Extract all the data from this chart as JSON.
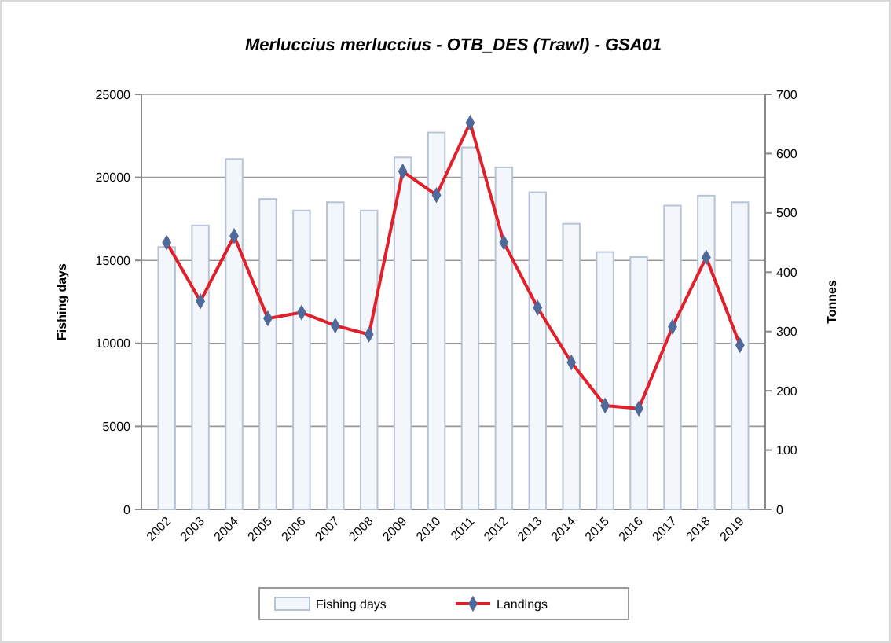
{
  "chart_data": {
    "type": "bar",
    "title": "Merluccius merluccius - OTB_DES (Trawl) - GSA01",
    "ylabel": "Fishing days",
    "y2label": "Tonnes",
    "categories": [
      "2002",
      "2003",
      "2004",
      "2005",
      "2006",
      "2007",
      "2008",
      "2009",
      "2010",
      "2011",
      "2012",
      "2013",
      "2014",
      "2015",
      "2016",
      "2017",
      "2018",
      "2019"
    ],
    "series": [
      {
        "name": "Fishing days",
        "color": "#f3f6fb",
        "values": [
          15800,
          17100,
          21100,
          18700,
          18000,
          18500,
          18000,
          21200,
          22700,
          21800,
          20600,
          19100,
          17200,
          15500,
          15200,
          18300,
          18900,
          18500
        ]
      },
      {
        "name": "Landings",
        "type": "line",
        "axis": "y2",
        "color": "#e0202a",
        "marker": "diamond",
        "line_style": "solid",
        "values": [
          450,
          351,
          461,
          322,
          332,
          310,
          295,
          570,
          530,
          652,
          450,
          340,
          248,
          175,
          170,
          308,
          425,
          277
        ]
      }
    ],
    "ylim": [
      0,
      25000
    ],
    "yticks": [
      0,
      5000,
      10000,
      15000,
      20000,
      25000
    ],
    "y2lim": [
      0,
      700
    ],
    "y2ticks": [
      0,
      100,
      200,
      300,
      400,
      500,
      600,
      700
    ],
    "grid": "y",
    "legend": "bottom"
  }
}
